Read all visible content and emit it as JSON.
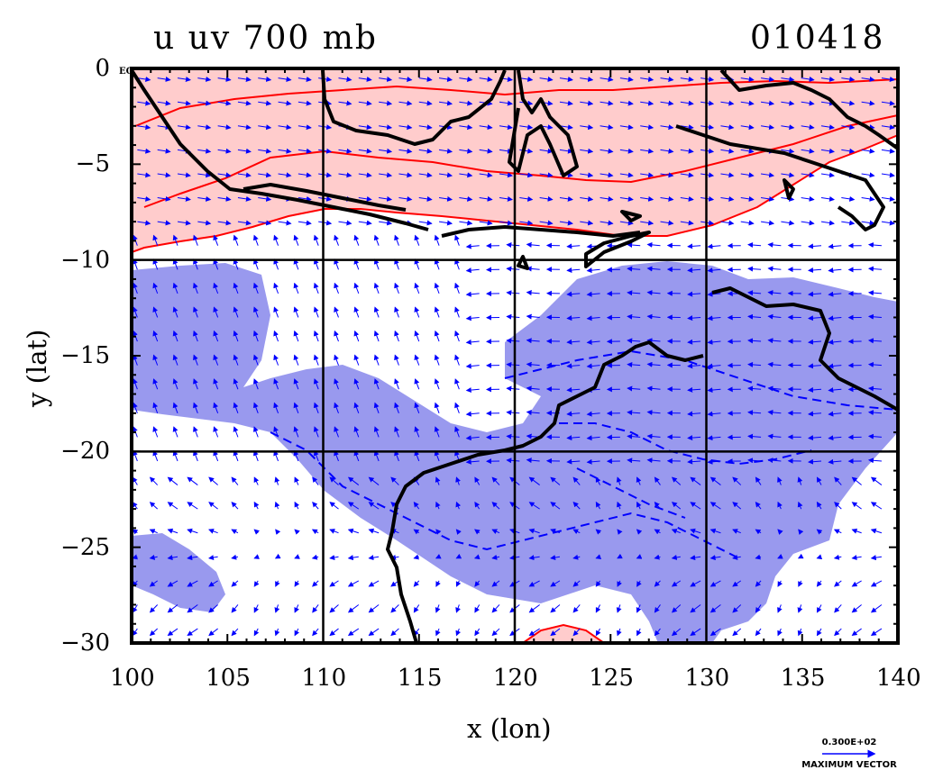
{
  "title_left": "u uv 700 mb",
  "title_right": "010418",
  "equator_tag": "EQ",
  "chart_data": {
    "type": "map",
    "xlabel": "x (lon)",
    "ylabel": "y (lat)",
    "xlim": [
      100,
      140
    ],
    "ylim": [
      -30,
      0
    ],
    "x_ticks": [
      100,
      105,
      110,
      115,
      120,
      125,
      130,
      135,
      140
    ],
    "y_ticks": [
      0,
      -5,
      -10,
      -15,
      -20,
      -25,
      -30
    ],
    "y_tick_labels": [
      "0",
      "−5",
      "−10",
      "−15",
      "−20",
      "−25",
      "−30"
    ],
    "grid_lon": [
      110,
      120,
      130
    ],
    "grid_lat": [
      -10,
      -20
    ],
    "colors": {
      "positive_fill": "#ffcccc",
      "positive_contour": "#ff0000",
      "negative_fill": "#9999ee",
      "negative_contour": "#0000ff",
      "coast": "#000000",
      "vector": "#0000ff"
    },
    "vector_legend": {
      "magnitude": "0.300E+02",
      "label": "MAXIMUM VECTOR"
    }
  }
}
